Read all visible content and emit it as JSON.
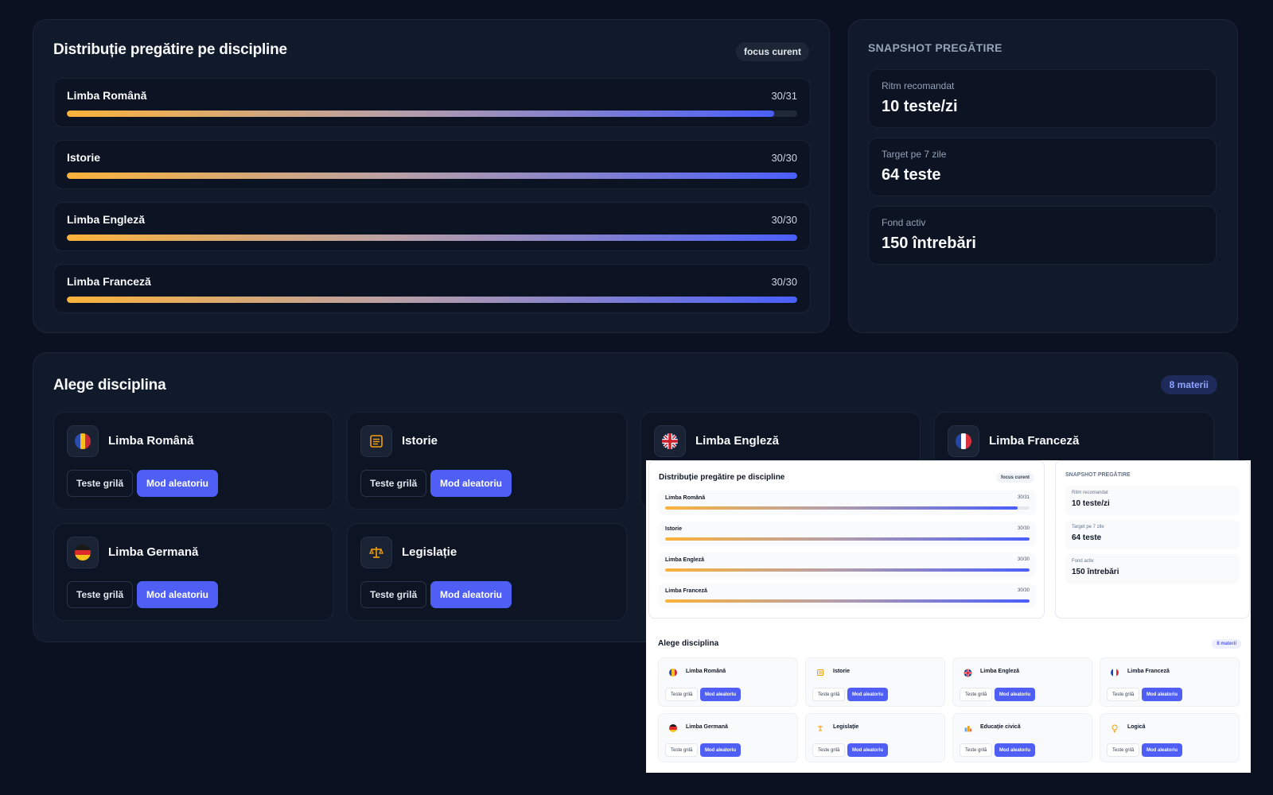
{
  "distribution": {
    "title": "Distribuție pregătire pe discipline",
    "focus_label": "focus curent",
    "subjects": [
      {
        "name": "Limba Română",
        "count": "30/31",
        "progress": 0.968
      },
      {
        "name": "Istorie",
        "count": "30/30",
        "progress": 1.0
      },
      {
        "name": "Limba Engleză",
        "count": "30/30",
        "progress": 1.0
      },
      {
        "name": "Limba Franceză",
        "count": "30/30",
        "progress": 1.0
      }
    ]
  },
  "snapshot": {
    "heading": "SNAPSHOT PREGĂTIRE",
    "stats": [
      {
        "label": "Ritm recomandat",
        "value": "10 teste/zi"
      },
      {
        "label": "Target pe 7 zile",
        "value": "64 teste"
      },
      {
        "label": "Fond activ",
        "value": "150 întrebări"
      }
    ]
  },
  "choose": {
    "title": "Alege disciplina",
    "badge": "8 materii",
    "grid_button": "Teste grilă",
    "random_button": "Mod aleatoriu",
    "disciplines": [
      {
        "name": "Limba Română",
        "icon": "romania-flag-icon"
      },
      {
        "name": "Istorie",
        "icon": "scroll-icon"
      },
      {
        "name": "Limba Engleză",
        "icon": "uk-flag-icon"
      },
      {
        "name": "Limba Franceză",
        "icon": "france-flag-icon"
      },
      {
        "name": "Limba Germană",
        "icon": "germany-flag-icon"
      },
      {
        "name": "Legislație",
        "icon": "scales-icon"
      },
      {
        "name": "Educație civică",
        "icon": "building-icon"
      },
      {
        "name": "Logică",
        "icon": "lightbulb-icon"
      }
    ]
  },
  "colors": {
    "accent": "#4f5ff6",
    "gradient_start": "#fbb23a",
    "gradient_end": "#4a5ffb",
    "dark_background": "#0b1120",
    "dark_card": "#111a2b"
  }
}
